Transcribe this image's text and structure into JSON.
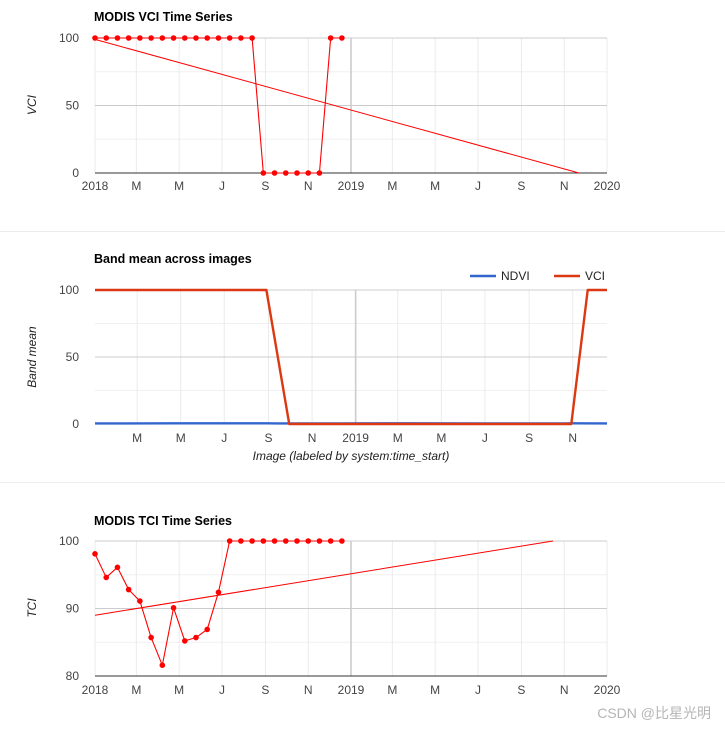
{
  "chart_data": [
    {
      "type": "line",
      "title": "MODIS VCI Time Series",
      "xlabel": "",
      "ylabel": "VCI",
      "ylim": [
        0,
        100
      ],
      "yticks": [
        0,
        50,
        100
      ],
      "xticks": [
        "2018",
        "M",
        "M",
        "J",
        "S",
        "N",
        "2019",
        "M",
        "M",
        "J",
        "S",
        "N",
        "2020"
      ],
      "legend": "none",
      "grid": true,
      "color": "#ff0000",
      "series": [
        {
          "name": "",
          "points": true,
          "x": [
            "2018-01-01",
            "2018-01-17",
            "2018-02-02",
            "2018-02-18",
            "2018-03-06",
            "2018-03-22",
            "2018-04-07",
            "2018-04-23",
            "2018-05-09",
            "2018-05-25",
            "2018-06-10",
            "2018-06-26",
            "2018-07-12",
            "2018-07-28",
            "2018-08-13",
            "2018-08-29",
            "2018-09-14",
            "2018-09-30",
            "2018-10-16",
            "2018-11-01",
            "2018-11-17",
            "2018-12-03",
            "2018-12-19"
          ],
          "values": [
            100,
            100,
            100,
            100,
            100,
            100,
            100,
            100,
            100,
            100,
            100,
            100,
            100,
            100,
            100,
            0,
            0,
            0,
            0,
            0,
            0,
            100,
            100
          ]
        },
        {
          "name": "",
          "points": false,
          "trendline": true,
          "x": [
            "2018-01-01",
            "2019-11-22"
          ],
          "values": [
            99,
            0
          ]
        }
      ]
    },
    {
      "type": "line",
      "title": "Band mean across images",
      "xlabel": "Image (labeled by system:time_start)",
      "ylabel": "Band mean",
      "ylim": [
        0,
        100
      ],
      "yticks": [
        0,
        50,
        100
      ],
      "xticks": [
        "M",
        "M",
        "J",
        "S",
        "N",
        "2019",
        "M",
        "M",
        "J",
        "S",
        "N"
      ],
      "legend": "top-right",
      "grid": true,
      "series": [
        {
          "name": "NDVI",
          "color": "#3366cc",
          "x": [
            "2018-01-01",
            "2018-04-23",
            "2018-08-29",
            "2018-09-14",
            "2018-12-03",
            "2019-03-22",
            "2019-07-12",
            "2019-10-16",
            "2019-11-01",
            "2019-12-19"
          ],
          "values": [
            0.4,
            0.5,
            0.5,
            0.4,
            0.4,
            0.5,
            0.4,
            0.4,
            0.5,
            0.4
          ]
        },
        {
          "name": "VCI",
          "color": "#dc3912",
          "x": [
            "2018-01-01",
            "2018-08-29",
            "2018-09-30",
            "2019-10-30",
            "2019-11-22",
            "2019-12-19"
          ],
          "values": [
            100,
            100,
            0,
            0,
            100,
            100
          ]
        }
      ]
    },
    {
      "type": "line",
      "title": "MODIS TCI Time Series",
      "xlabel": "",
      "ylabel": "TCI",
      "ylim": [
        80,
        100
      ],
      "yticks": [
        80,
        90,
        100
      ],
      "xticks": [
        "2018",
        "M",
        "M",
        "J",
        "S",
        "N",
        "2019",
        "M",
        "M",
        "J",
        "S",
        "N",
        "2020"
      ],
      "legend": "none",
      "grid": true,
      "color": "#ff0000",
      "series": [
        {
          "name": "",
          "points": true,
          "x": [
            "2018-01-01",
            "2018-01-17",
            "2018-02-02",
            "2018-02-18",
            "2018-03-06",
            "2018-03-22",
            "2018-04-07",
            "2018-04-23",
            "2018-05-09",
            "2018-05-25",
            "2018-06-10",
            "2018-06-26",
            "2018-07-12",
            "2018-07-28",
            "2018-08-13",
            "2018-08-29",
            "2018-09-14",
            "2018-09-30",
            "2018-10-16",
            "2018-11-01",
            "2018-11-17",
            "2018-12-03",
            "2018-12-19"
          ],
          "values": [
            98.1,
            94.6,
            96.1,
            92.8,
            91.1,
            85.7,
            81.6,
            90.1,
            85.2,
            85.7,
            86.9,
            92.4,
            100,
            100,
            100,
            100,
            100,
            100,
            100,
            100,
            100,
            100,
            100
          ]
        },
        {
          "name": "",
          "points": false,
          "trendline": true,
          "x": [
            "2018-01-01",
            "2019-10-16"
          ],
          "values": [
            89.0,
            100
          ]
        }
      ]
    }
  ],
  "watermark": "CSDN @比星光明"
}
